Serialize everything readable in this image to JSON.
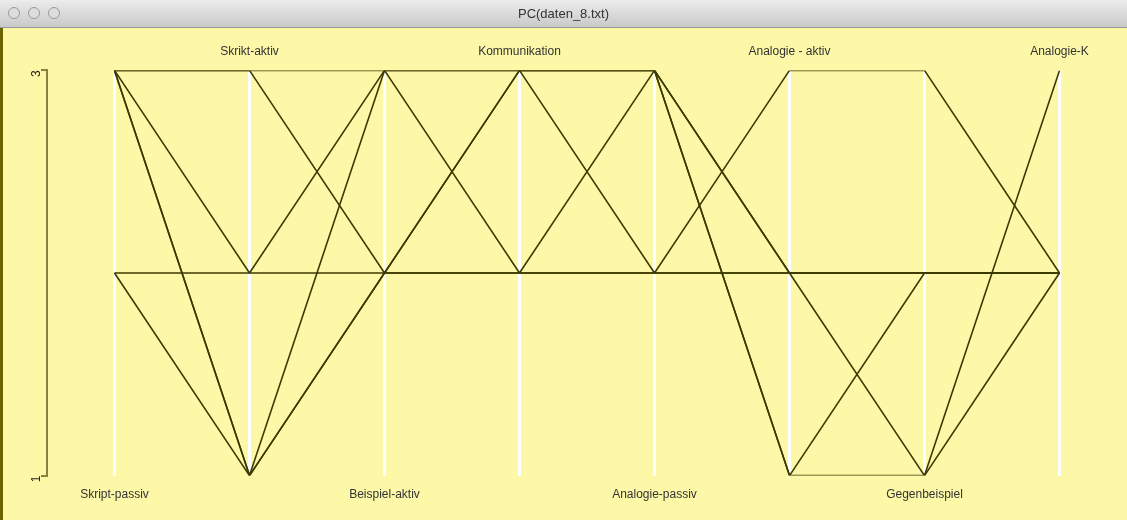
{
  "chart_data": {
    "type": "line",
    "title": "PC(daten_8.txt)",
    "categories": [
      "Skript-passiv",
      "Skrikt-aktiv",
      "Beispiel-aktiv",
      "Kommunikation",
      "Analogie-passiv",
      "Analogie - aktiv",
      "Gegenbeispiel",
      "Analogie-K"
    ],
    "series": [
      {
        "color": "#3d3a00",
        "values": [
          3,
          3,
          2,
          3,
          2,
          3,
          3,
          2
        ]
      },
      {
        "color": "#3d3a00",
        "values": [
          3,
          2,
          3,
          3,
          3,
          1,
          1,
          2
        ]
      },
      {
        "color": "#3d3a00",
        "values": [
          3,
          1,
          3,
          2,
          3,
          2,
          1,
          3
        ]
      },
      {
        "color": "#3d3a00",
        "values": [
          3,
          1,
          2,
          3,
          3,
          1,
          2,
          2
        ]
      },
      {
        "color": "#3d3a00",
        "values": [
          2,
          2,
          2,
          2,
          2,
          2,
          2,
          2
        ]
      },
      {
        "color": "#3d3a00",
        "values": [
          2,
          1,
          2,
          2,
          2,
          2,
          2,
          2
        ]
      },
      {
        "color": "#3d3a00",
        "values": [
          3,
          3,
          3,
          3,
          3,
          2,
          2,
          2
        ]
      }
    ],
    "ylim": [
      1,
      3
    ],
    "yticks": [
      1,
      3
    ],
    "grid": "x",
    "legend": false,
    "marker": "none",
    "line_style": "solid"
  }
}
